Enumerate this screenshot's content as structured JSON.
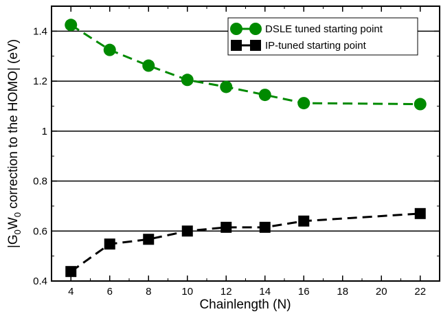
{
  "chart_data": {
    "type": "line",
    "xlabel": "Chainlength (N)",
    "ylabel": "|G0W0 correction to the HOMO| (eV)",
    "ylabel_parts": {
      "pre": "|G",
      "sub1": "0",
      "mid": "W",
      "sub2": "0",
      "post": " correction to the HOMO| (eV)"
    },
    "xlim": [
      3,
      23
    ],
    "ylim": [
      0.4,
      1.5
    ],
    "x_ticks": [
      4,
      6,
      8,
      10,
      12,
      14,
      16,
      18,
      20,
      22
    ],
    "y_ticks": [
      0.4,
      0.6,
      0.8,
      1.0,
      1.2,
      1.4
    ],
    "y_tick_labels": [
      "0.4",
      "0.6",
      "0.8",
      "1",
      "1.2",
      "1.4"
    ],
    "grid": "horizontal",
    "legend_position": "top-right",
    "series": [
      {
        "name": "DSLE tuned starting point",
        "color": "#008a00",
        "marker": "circle",
        "line_style": "dashed",
        "x": [
          4,
          6,
          8,
          10,
          12,
          14,
          16,
          22
        ],
        "y": [
          1.425,
          1.325,
          1.262,
          1.205,
          1.177,
          1.145,
          1.112,
          1.108
        ]
      },
      {
        "name": "IP-tuned starting point",
        "color": "#000000",
        "marker": "square",
        "line_style": "dashed",
        "x": [
          4,
          6,
          8,
          10,
          12,
          14,
          16,
          22
        ],
        "y": [
          0.438,
          0.548,
          0.567,
          0.6,
          0.615,
          0.615,
          0.64,
          0.67
        ]
      }
    ]
  }
}
